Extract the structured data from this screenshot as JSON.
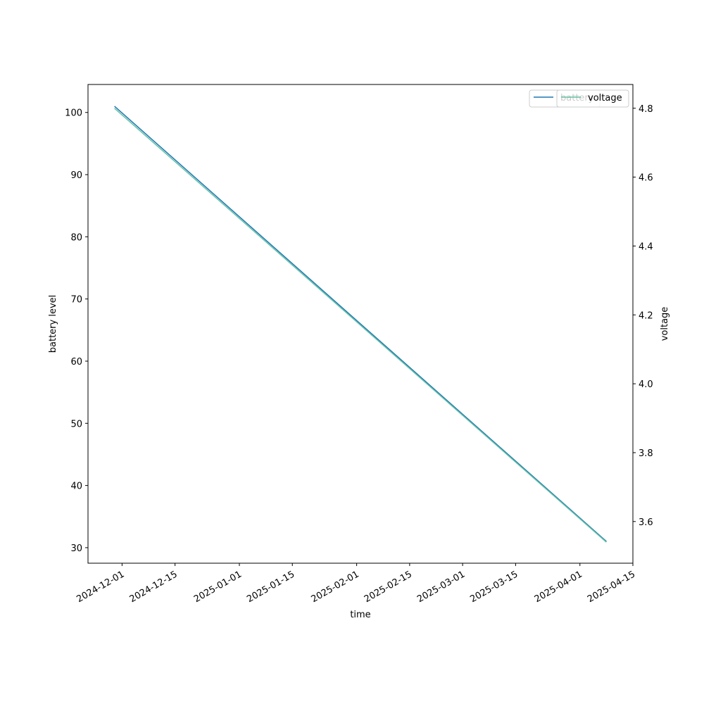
{
  "chart_data": {
    "type": "line",
    "x_label": "time",
    "y_label": "battery level",
    "y2_label": "voltage",
    "x": [
      "2024-11-29",
      "2024-12-25",
      "2025-01-20",
      "2025-02-15",
      "2025-03-13",
      "2025-04-08"
    ],
    "series": [
      {
        "name": "battery",
        "color": "#1f77b4",
        "values": [
          101,
          87,
          73,
          59,
          45,
          31
        ]
      },
      {
        "name": "voltage",
        "color": "#66c2a5",
        "axis": "y2",
        "values": [
          4.8,
          4.548,
          4.296,
          4.044,
          3.792,
          3.54
        ]
      }
    ],
    "xlim": [
      "2024-11-22",
      "2025-04-15"
    ],
    "xticks": [
      "2024-12-01",
      "2024-12-15",
      "2025-01-01",
      "2025-01-15",
      "2025-02-01",
      "2025-02-15",
      "2025-03-01",
      "2025-03-15",
      "2025-04-01",
      "2025-04-15"
    ],
    "ylim": [
      27.5,
      104.5
    ],
    "yticks": [
      30,
      40,
      50,
      60,
      70,
      80,
      90,
      100
    ],
    "y2lim": [
      3.479,
      4.869
    ],
    "y2ticks": [
      3.6,
      3.8,
      {
        "value": 4,
        "label": "4.0"
      },
      4.2,
      4.4,
      4.6,
      4.8
    ],
    "grid": false,
    "legend": "upper right"
  }
}
